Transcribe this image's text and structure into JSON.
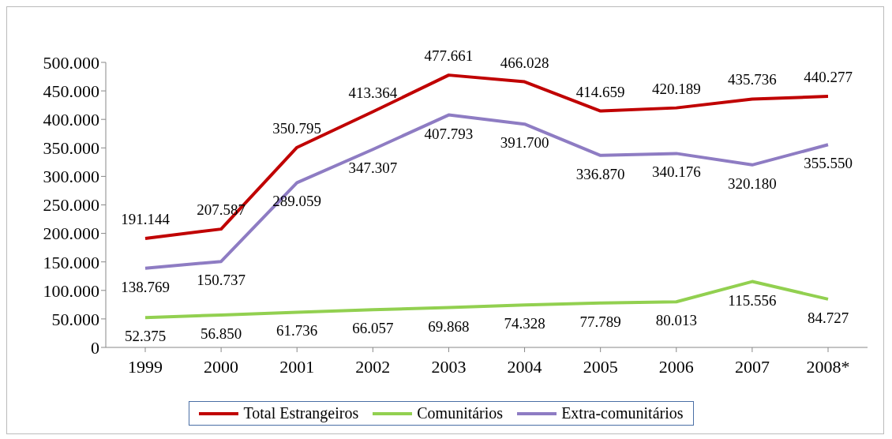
{
  "chart_data": {
    "type": "line",
    "categories": [
      "1999",
      "2000",
      "2001",
      "2002",
      "2003",
      "2004",
      "2005",
      "2006",
      "2007",
      "2008*"
    ],
    "series": [
      {
        "name": "Total Estrangeiros",
        "color": "#c00000",
        "values": [
          191144,
          207587,
          350795,
          413364,
          477661,
          466028,
          414659,
          420189,
          435736,
          440277
        ],
        "value_labels": [
          "191.144",
          "207.587",
          "350.795",
          "413.364",
          "477.661",
          "466.028",
          "414.659",
          "420.189",
          "435.736",
          "440.277"
        ]
      },
      {
        "name": "Comunitários",
        "color": "#92d050",
        "values": [
          52375,
          56850,
          61736,
          66057,
          69868,
          74328,
          77789,
          80013,
          115556,
          84727
        ],
        "value_labels": [
          "52.375",
          "56.850",
          "61.736",
          "66.057",
          "69.868",
          "74.328",
          "77.789",
          "80.013",
          "115.556",
          "84.727"
        ]
      },
      {
        "name": "Extra-comunitários",
        "color": "#8e7cc3",
        "values": [
          138769,
          150737,
          289059,
          347307,
          407793,
          391700,
          336870,
          340176,
          320180,
          355550
        ],
        "value_labels": [
          "138.769",
          "150.737",
          "289.059",
          "347.307",
          "407.793",
          "391.700",
          "336.870",
          "340.176",
          "320.180",
          "355.550"
        ]
      }
    ],
    "ylim": [
      0,
      500000
    ],
    "yticks": [
      0,
      {
        "value": 50000,
        "label": "50.000"
      },
      {
        "value": 100000,
        "label": "100.000"
      },
      {
        "value": 150000,
        "label": "150.000"
      },
      {
        "value": 200000,
        "label": "200.000"
      },
      {
        "value": 250000,
        "label": "250.000"
      },
      {
        "value": 300000,
        "label": "300.000"
      },
      {
        "value": 350000,
        "label": "350.000"
      },
      {
        "value": 400000,
        "label": "400.000"
      },
      {
        "value": 450000,
        "label": "450.000"
      },
      {
        "value": 500000,
        "label": "500.000"
      }
    ],
    "grid": false,
    "legend": "bottom",
    "marker": "none",
    "line_style": "solid"
  }
}
